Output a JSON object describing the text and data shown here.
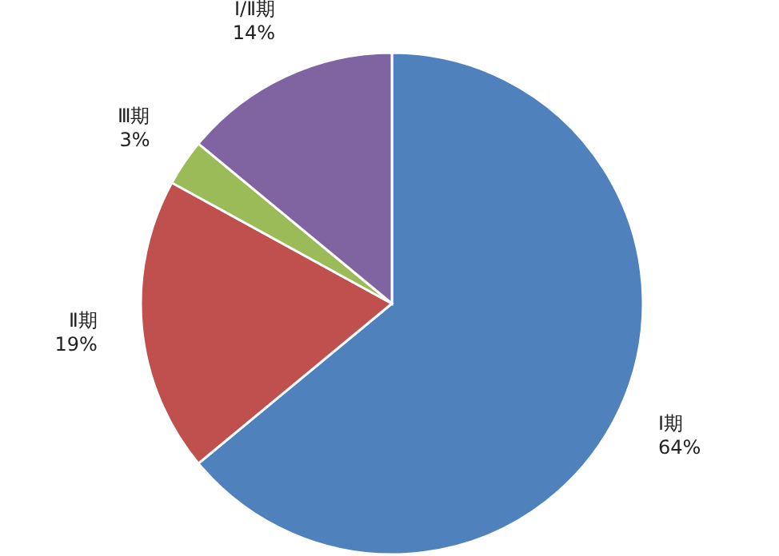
{
  "chart_data": {
    "type": "pie",
    "categories": [
      "Ⅰ期",
      "Ⅱ期",
      "Ⅲ期",
      "Ⅰ/Ⅱ期"
    ],
    "values": [
      64,
      19,
      3,
      14
    ],
    "colors": [
      "#4f81bd",
      "#c0504d",
      "#9bbb59",
      "#8064a2"
    ],
    "value_labels": [
      "64%",
      "19%",
      "3%",
      "14%"
    ]
  }
}
